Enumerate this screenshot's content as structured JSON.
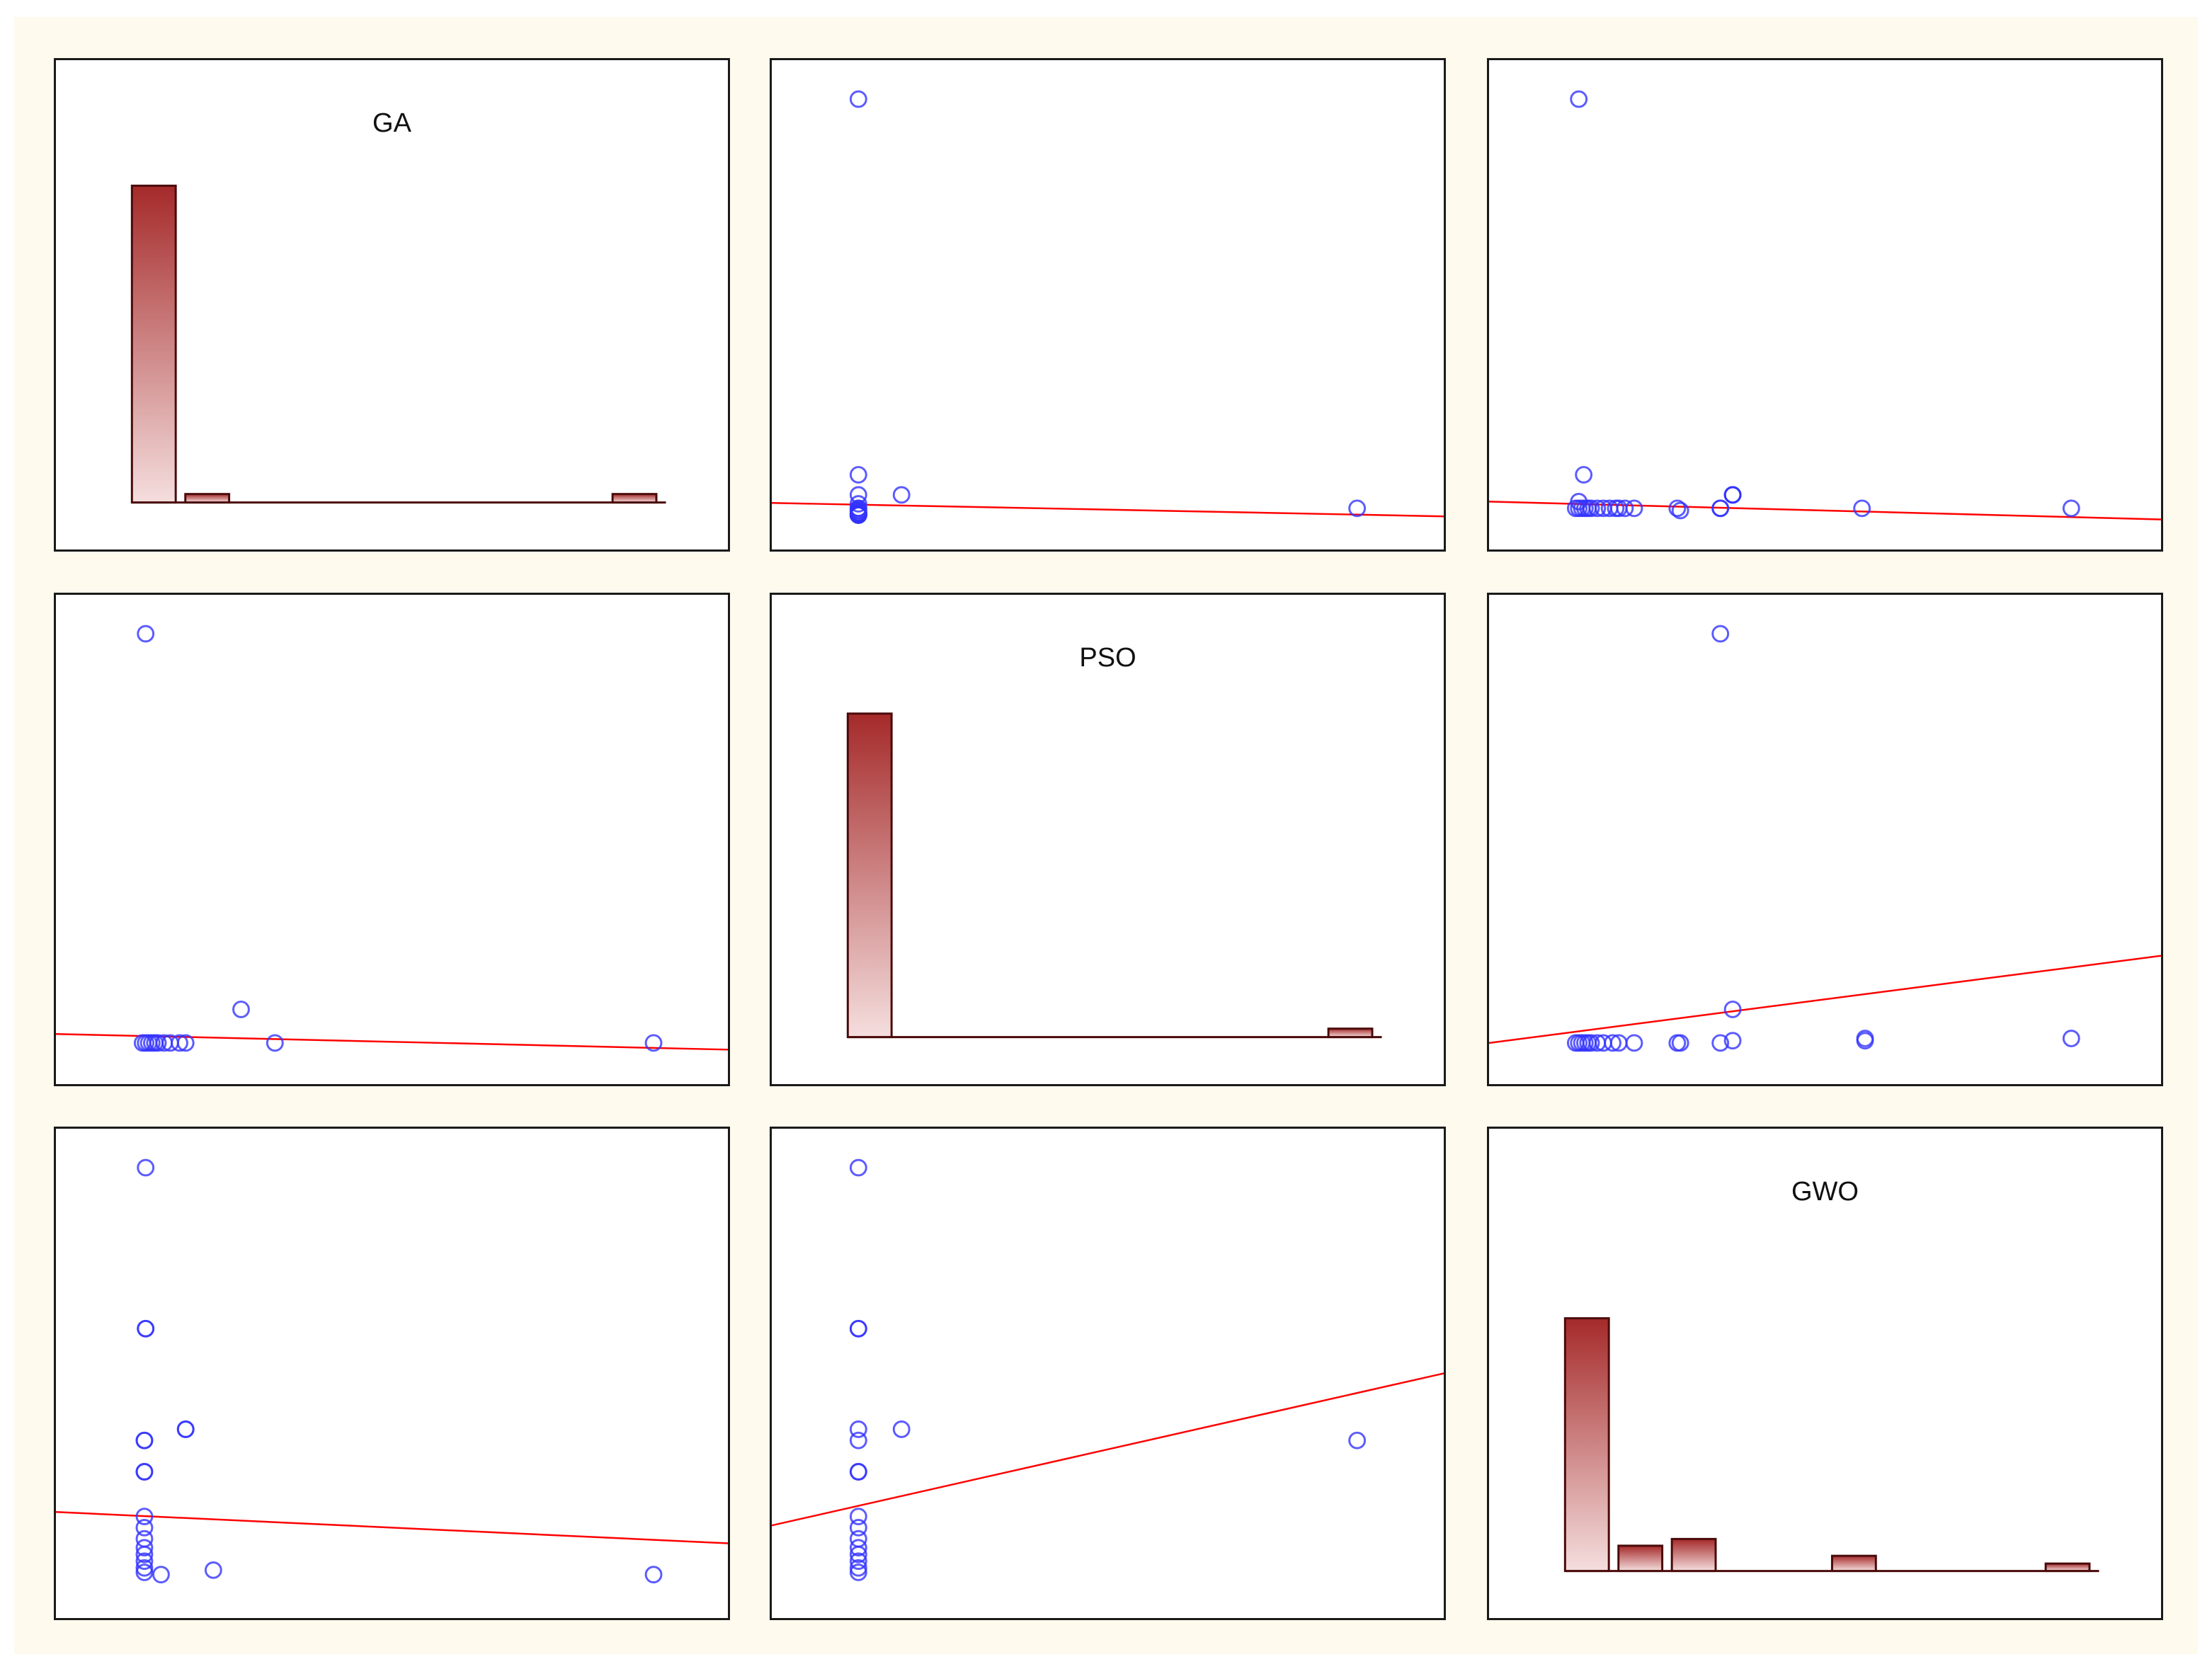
{
  "colors": {
    "background": "#fffaee",
    "panel_background": "#ffffff",
    "panel_border": "#1a1a1a",
    "point": "#3333ff",
    "fit_line": "#ff0000",
    "bar_top": "#a52a2a",
    "bar_bottom": "#f5dede",
    "bar_outline": "#4a0a0a"
  },
  "chart_data": [
    {
      "type": "bar",
      "title": "GA",
      "row": 0,
      "col": 0,
      "xlim": [
        0,
        10
      ],
      "ylim": [
        0,
        1
      ],
      "bins": [
        0,
        1,
        2,
        3,
        4,
        5,
        6,
        7,
        8,
        9
      ],
      "values": [
        0.94,
        0.025,
        0,
        0,
        0,
        0,
        0,
        0,
        0,
        0.025
      ]
    },
    {
      "type": "scatter",
      "row": 0,
      "col": 1,
      "xlim": [
        0,
        1
      ],
      "ylim": [
        0,
        1
      ],
      "x": [
        0.095,
        0.095,
        0.095,
        0.095,
        0.095,
        0.095,
        0.095,
        0.095,
        0.095,
        0.095,
        0.095,
        0.095,
        0.095,
        0.095,
        0.095,
        0.095,
        0.095,
        0.095,
        0.095,
        0.095,
        0.095,
        0.095,
        0.095,
        0.165,
        0.905
      ],
      "y": [
        0.96,
        0.12,
        0.075,
        0.055,
        0.045,
        0.045,
        0.04,
        0.04,
        0.035,
        0.035,
        0.035,
        0.035,
        0.032,
        0.032,
        0.032,
        0.032,
        0.032,
        0.03,
        0.03,
        0.03,
        0.03,
        0.03,
        0.03,
        0.075,
        0.045
      ],
      "fit": {
        "x": [
          0,
          1
        ],
        "y": [
          0.057,
          0.027
        ]
      }
    },
    {
      "type": "scatter",
      "row": 0,
      "col": 2,
      "xlim": [
        0,
        1
      ],
      "ylim": [
        0,
        1
      ],
      "x": [
        0.1,
        0.108,
        0.1,
        0.095,
        0.1,
        0.105,
        0.11,
        0.115,
        0.12,
        0.13,
        0.14,
        0.15,
        0.16,
        0.165,
        0.175,
        0.19,
        0.26,
        0.265,
        0.33,
        0.33,
        0.35,
        0.35,
        0.35,
        0.56,
        0.9
      ],
      "y": [
        0.96,
        0.12,
        0.06,
        0.045,
        0.045,
        0.045,
        0.045,
        0.045,
        0.045,
        0.045,
        0.045,
        0.045,
        0.045,
        0.045,
        0.045,
        0.045,
        0.045,
        0.04,
        0.045,
        0.045,
        0.075,
        0.075,
        0.075,
        0.045,
        0.045
      ],
      "fit": {
        "x": [
          0,
          1
        ],
        "y": [
          0.06,
          0.02
        ]
      }
    },
    {
      "type": "scatter",
      "row": 1,
      "col": 0,
      "xlim": [
        0,
        1
      ],
      "ylim": [
        0,
        1
      ],
      "x": [
        0.1,
        0.095,
        0.1,
        0.105,
        0.11,
        0.115,
        0.12,
        0.13,
        0.14,
        0.155,
        0.165,
        0.255,
        0.31,
        0.925
      ],
      "y": [
        0.96,
        0.045,
        0.045,
        0.045,
        0.045,
        0.045,
        0.045,
        0.045,
        0.045,
        0.045,
        0.045,
        0.12,
        0.045,
        0.045
      ],
      "fit": {
        "x": [
          0,
          1
        ],
        "y": [
          0.065,
          0.03
        ]
      }
    },
    {
      "type": "bar",
      "title": "PSO",
      "row": 1,
      "col": 1,
      "xlim": [
        0,
        10
      ],
      "ylim": [
        0,
        1
      ],
      "bins": [
        0,
        1,
        2,
        3,
        4,
        5,
        6,
        7,
        8,
        9
      ],
      "values": [
        0.96,
        0,
        0,
        0,
        0,
        0,
        0,
        0,
        0,
        0.025
      ]
    },
    {
      "type": "scatter",
      "row": 1,
      "col": 2,
      "xlim": [
        0,
        1
      ],
      "ylim": [
        0,
        1
      ],
      "x": [
        0.095,
        0.1,
        0.105,
        0.11,
        0.115,
        0.12,
        0.13,
        0.14,
        0.155,
        0.165,
        0.19,
        0.26,
        0.265,
        0.33,
        0.35,
        0.35,
        0.565,
        0.565,
        0.9
      ],
      "y": [
        0.045,
        0.045,
        0.045,
        0.045,
        0.045,
        0.045,
        0.045,
        0.045,
        0.045,
        0.045,
        0.045,
        0.045,
        0.045,
        0.045,
        0.12,
        0.05,
        0.05,
        0.055,
        0.055
      ],
      "extra": {
        "x": [
          0.33
        ],
        "y": [
          0.96
        ]
      },
      "fit": {
        "x": [
          0,
          1
        ],
        "y": [
          0.045,
          0.24
        ]
      }
    },
    {
      "type": "scatter",
      "row": 2,
      "col": 0,
      "xlim": [
        0,
        1
      ],
      "ylim": [
        0,
        1
      ],
      "x": [
        0.1,
        0.1,
        0.1,
        0.098,
        0.098,
        0.098,
        0.098,
        0.098,
        0.098,
        0.098,
        0.098,
        0.098,
        0.098,
        0.098,
        0.098,
        0.165,
        0.165,
        0.21,
        0.925
      ],
      "y": [
        0.96,
        0.6,
        0.6,
        0.35,
        0.35,
        0.28,
        0.28,
        0.18,
        0.155,
        0.13,
        0.11,
        0.095,
        0.08,
        0.065,
        0.055,
        0.375,
        0.375,
        0.06,
        0.05
      ],
      "extra": {
        "x": [
          0.125
        ],
        "y": [
          0.05
        ]
      },
      "fit": {
        "x": [
          0,
          1
        ],
        "y": [
          0.19,
          0.12
        ]
      }
    },
    {
      "type": "scatter",
      "row": 2,
      "col": 1,
      "xlim": [
        0,
        1
      ],
      "ylim": [
        0,
        1
      ],
      "x": [
        0.095,
        0.095,
        0.095,
        0.095,
        0.095,
        0.095,
        0.095,
        0.095,
        0.095,
        0.095,
        0.095,
        0.095,
        0.095,
        0.095,
        0.095,
        0.165,
        0.905
      ],
      "y": [
        0.96,
        0.6,
        0.6,
        0.375,
        0.35,
        0.28,
        0.28,
        0.18,
        0.155,
        0.13,
        0.11,
        0.095,
        0.08,
        0.065,
        0.055,
        0.375,
        0.35
      ],
      "fit": {
        "x": [
          0,
          1
        ],
        "y": [
          0.16,
          0.5
        ]
      }
    },
    {
      "type": "bar",
      "title": "GWO",
      "row": 2,
      "col": 2,
      "xlim": [
        0,
        10
      ],
      "ylim": [
        0,
        1
      ],
      "bins": [
        0,
        1,
        2,
        3,
        4,
        5,
        6,
        7,
        8,
        9
      ],
      "values": [
        0.75,
        0.075,
        0.095,
        0,
        0,
        0.045,
        0,
        0,
        0,
        0.022
      ]
    }
  ]
}
